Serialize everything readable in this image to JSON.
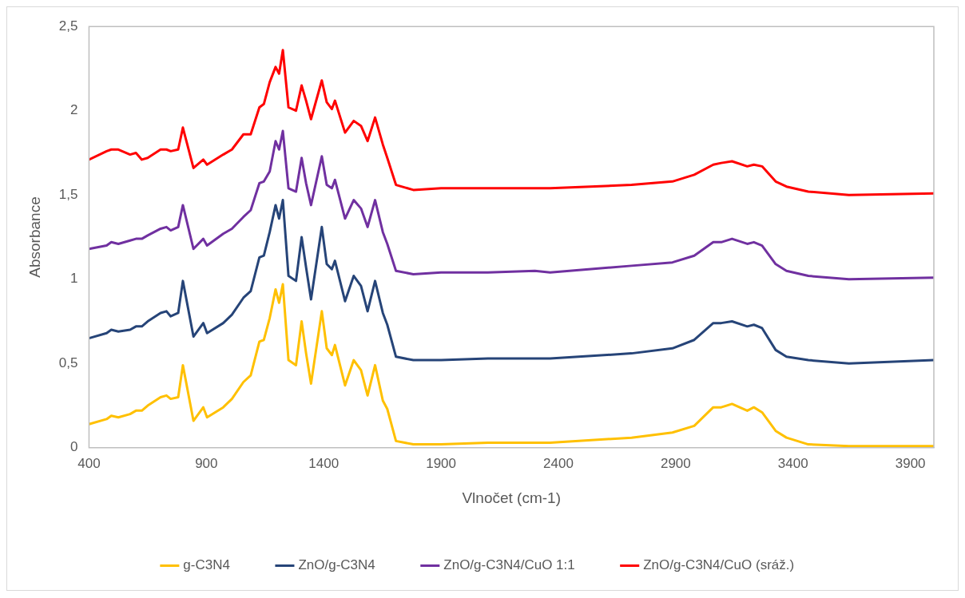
{
  "chart_data": {
    "type": "line",
    "xlabel": "Vlnočet (cm-1)",
    "ylabel": "Absorbance",
    "x": [
      400,
      475,
      495,
      525,
      575,
      600,
      625,
      650,
      705,
      730,
      748,
      780,
      800,
      845,
      887,
      903,
      972,
      1009,
      1058,
      1089,
      1126,
      1145,
      1170,
      1195,
      1210,
      1226,
      1250,
      1282,
      1306,
      1325,
      1346,
      1392,
      1413,
      1435,
      1448,
      1491,
      1528,
      1559,
      1587,
      1619,
      1652,
      1671,
      1708,
      1782,
      1900,
      2100,
      2300,
      2365,
      2712,
      2886,
      2979,
      3060,
      3094,
      3140,
      3205,
      3233,
      3268,
      3326,
      3372,
      3465,
      3638,
      4000
    ],
    "series": [
      {
        "name": "g-C3N4",
        "color": "#ffc000",
        "values": [
          0.14,
          0.17,
          0.19,
          0.18,
          0.2,
          0.22,
          0.22,
          0.25,
          0.3,
          0.31,
          0.29,
          0.3,
          0.49,
          0.16,
          0.24,
          0.18,
          0.24,
          0.29,
          0.39,
          0.43,
          0.63,
          0.64,
          0.77,
          0.94,
          0.86,
          0.97,
          0.52,
          0.49,
          0.75,
          0.56,
          0.38,
          0.81,
          0.59,
          0.55,
          0.61,
          0.37,
          0.52,
          0.46,
          0.31,
          0.49,
          0.28,
          0.23,
          0.04,
          0.02,
          0.02,
          0.03,
          0.03,
          0.03,
          0.06,
          0.09,
          0.13,
          0.24,
          0.24,
          0.26,
          0.22,
          0.24,
          0.21,
          0.1,
          0.06,
          0.02,
          0.01,
          0.01
        ]
      },
      {
        "name": "ZnO/g-C3N4",
        "color": "#264478",
        "values": [
          0.65,
          0.68,
          0.7,
          0.69,
          0.7,
          0.72,
          0.72,
          0.75,
          0.8,
          0.81,
          0.78,
          0.8,
          0.99,
          0.66,
          0.74,
          0.68,
          0.74,
          0.79,
          0.89,
          0.93,
          1.13,
          1.14,
          1.28,
          1.44,
          1.36,
          1.47,
          1.02,
          0.99,
          1.25,
          1.07,
          0.88,
          1.31,
          1.09,
          1.06,
          1.11,
          0.87,
          1.02,
          0.96,
          0.81,
          0.99,
          0.8,
          0.73,
          0.54,
          0.52,
          0.52,
          0.53,
          0.53,
          0.53,
          0.56,
          0.59,
          0.64,
          0.74,
          0.74,
          0.75,
          0.72,
          0.73,
          0.71,
          0.58,
          0.54,
          0.52,
          0.5,
          0.52
        ]
      },
      {
        "name": "ZnO/g-C3N4/CuO 1:1",
        "color": "#7030a0",
        "values": [
          1.18,
          1.2,
          1.22,
          1.21,
          1.23,
          1.24,
          1.24,
          1.26,
          1.3,
          1.31,
          1.29,
          1.31,
          1.44,
          1.18,
          1.24,
          1.2,
          1.27,
          1.3,
          1.37,
          1.41,
          1.57,
          1.58,
          1.64,
          1.82,
          1.77,
          1.88,
          1.54,
          1.52,
          1.72,
          1.57,
          1.44,
          1.73,
          1.56,
          1.54,
          1.59,
          1.36,
          1.47,
          1.42,
          1.31,
          1.47,
          1.28,
          1.21,
          1.05,
          1.03,
          1.04,
          1.04,
          1.05,
          1.04,
          1.08,
          1.1,
          1.14,
          1.22,
          1.22,
          1.24,
          1.21,
          1.22,
          1.2,
          1.09,
          1.05,
          1.02,
          1.0,
          1.01
        ]
      },
      {
        "name": "ZnO/g-C3N4/CuO (sráž.)",
        "color": "#ff0000",
        "values": [
          1.71,
          1.76,
          1.77,
          1.77,
          1.74,
          1.75,
          1.71,
          1.72,
          1.77,
          1.77,
          1.76,
          1.77,
          1.9,
          1.66,
          1.71,
          1.68,
          1.74,
          1.77,
          1.86,
          1.86,
          2.02,
          2.04,
          2.17,
          2.26,
          2.22,
          2.36,
          2.02,
          2.0,
          2.15,
          2.06,
          1.95,
          2.18,
          2.05,
          2.01,
          2.06,
          1.87,
          1.94,
          1.91,
          1.82,
          1.96,
          1.8,
          1.72,
          1.56,
          1.53,
          1.54,
          1.54,
          1.54,
          1.54,
          1.56,
          1.58,
          1.62,
          1.68,
          1.69,
          1.7,
          1.67,
          1.68,
          1.67,
          1.58,
          1.55,
          1.52,
          1.5,
          1.51
        ]
      }
    ],
    "xlim": [
      400,
      4000
    ],
    "xticks": [
      400,
      900,
      1400,
      1900,
      2400,
      2900,
      3400,
      3900
    ],
    "ylim": [
      0,
      2.5
    ],
    "yticks": [
      0,
      {
        "value": 0.5,
        "label": "0,5"
      },
      1,
      {
        "value": 1.5,
        "label": "1,5"
      },
      2,
      {
        "value": 2.5,
        "label": "2,5"
      }
    ],
    "grid": false,
    "legend": "bottom",
    "marker": "none",
    "line_style": "solid"
  }
}
